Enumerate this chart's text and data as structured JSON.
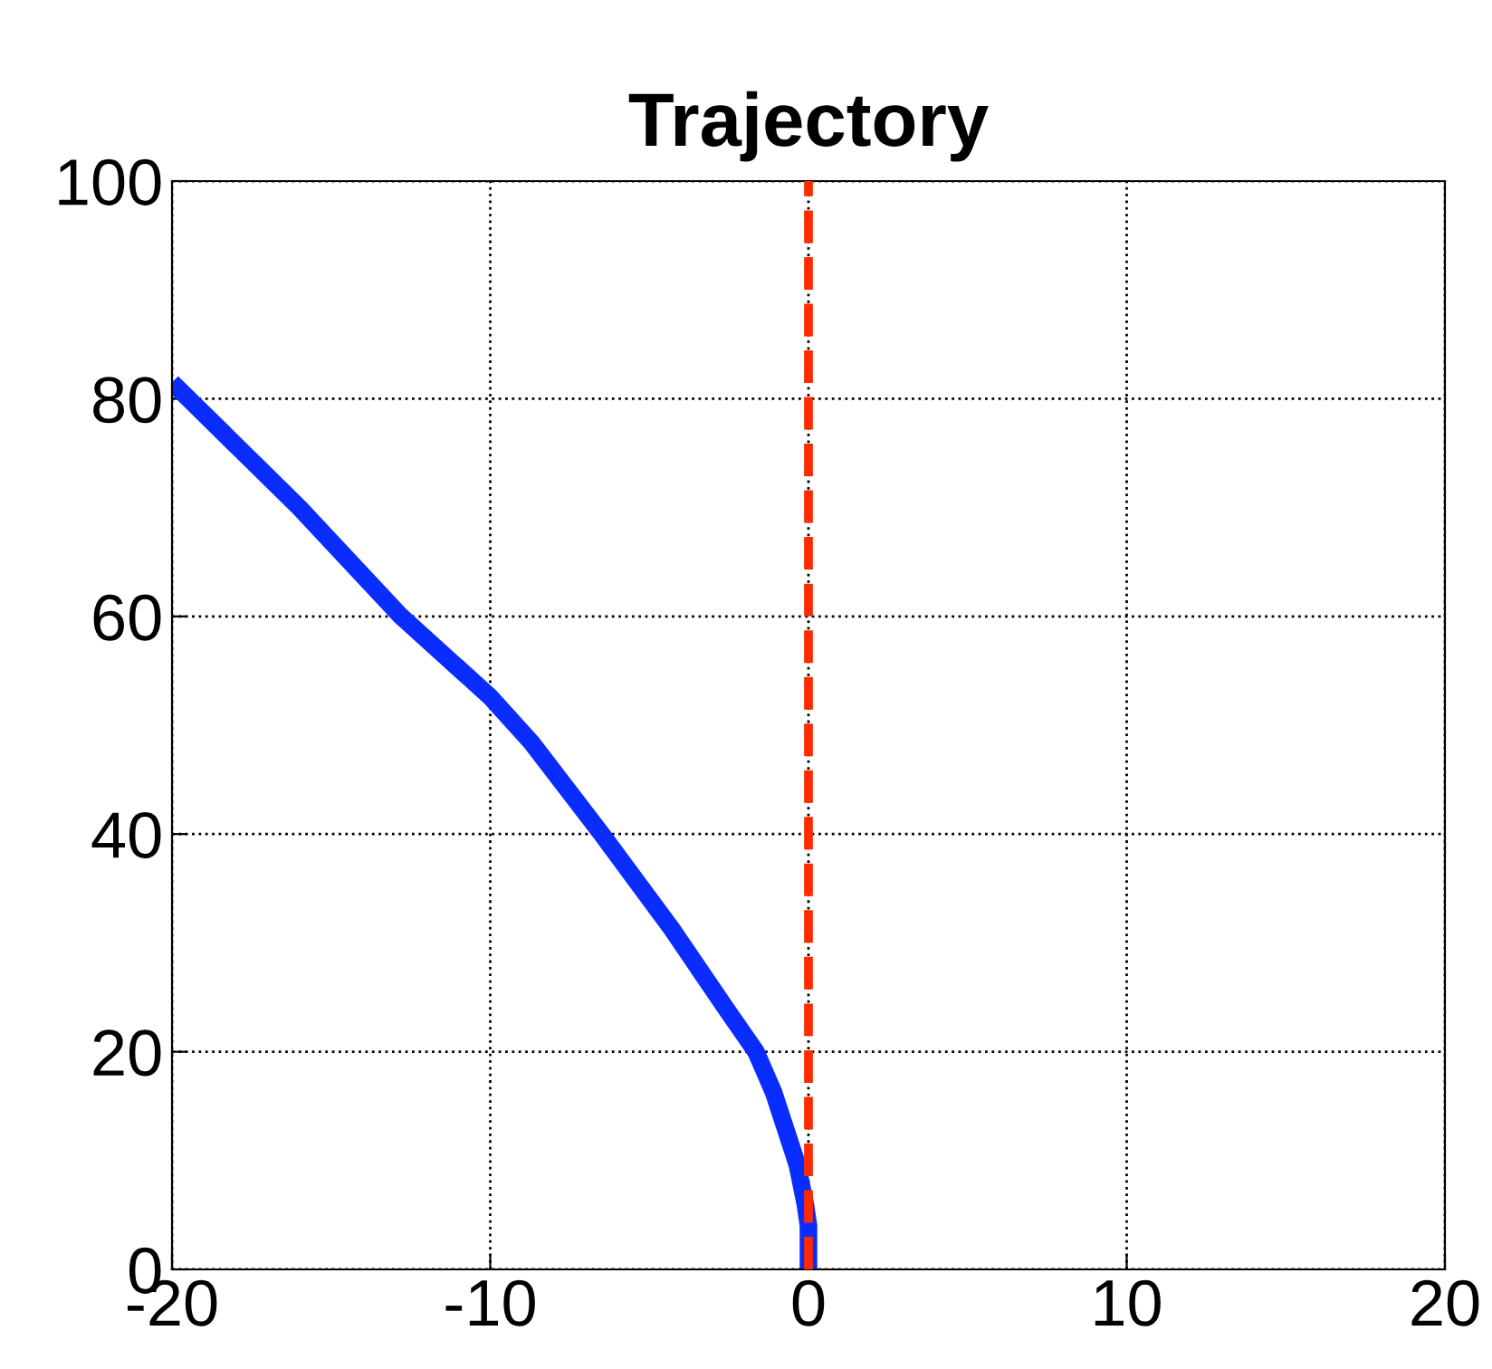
{
  "chart_data": {
    "type": "line",
    "title": "Trajectory",
    "series": [
      {
        "color": "#0a2cff",
        "x": [
          -20,
          -16,
          -12.8,
          -10,
          -8.7,
          -6.5,
          -4.3,
          -2.6,
          -1.65,
          -1.1,
          -0.35,
          -0.1,
          0,
          0
        ],
        "values": [
          81.5,
          70,
          60,
          52.6,
          48.4,
          40,
          31.3,
          24,
          20,
          16.3,
          9.6,
          6,
          4,
          0
        ]
      }
    ],
    "ref_lines": [
      {
        "axis": "x",
        "value": 0,
        "color": "#ff2a00",
        "line_style": "dashed"
      }
    ],
    "xlim": [
      -20,
      20
    ],
    "xticks": [
      -20,
      -10,
      0,
      10,
      20
    ],
    "ylim": [
      0,
      100
    ],
    "yticks": [
      0,
      20,
      40,
      60,
      80,
      100
    ],
    "grid": true
  }
}
